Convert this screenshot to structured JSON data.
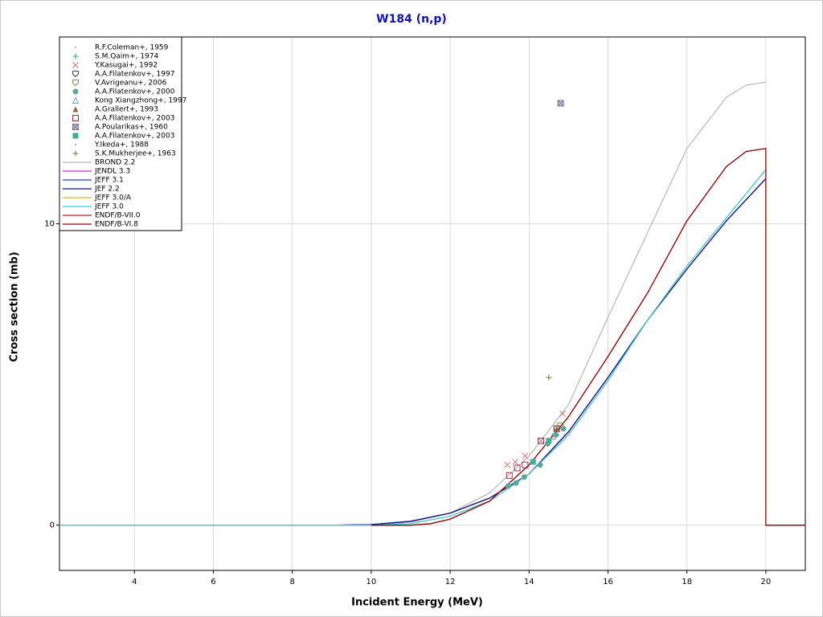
{
  "chart_data": {
    "type": "scatter",
    "title": "W184 (n,p)",
    "x_label": "Incident Energy (MeV)",
    "y_label": "Cross section (mb)",
    "xlim": [
      2.1,
      21
    ],
    "ylim": [
      -1.5,
      16.2
    ],
    "xticks": [
      4,
      6,
      8,
      10,
      12,
      14,
      16,
      18,
      20
    ],
    "yticks": [
      0,
      10
    ],
    "grid": true,
    "legend": "upper left",
    "series": [
      {
        "name": "R.F.Coleman+, 1959",
        "color": "#8fb0c8",
        "marker": "dot",
        "x": [
          14.5
        ],
        "values": [
          2.8
        ]
      },
      {
        "name": "S.M.Qaim+, 1974",
        "color": "#3a9a8a",
        "marker": "plus",
        "x": [
          14.7
        ],
        "values": [
          3.0
        ]
      },
      {
        "name": "Y.Kasugai+, 1992",
        "color": "#d07070",
        "marker": "cross",
        "x": [
          13.45,
          13.65,
          13.9,
          14.3,
          14.85
        ],
        "values": [
          2.0,
          2.1,
          2.3,
          2.8,
          3.7
        ]
      },
      {
        "name": "A.A.Filatenkov+, 1997",
        "color": "#404060",
        "marker": "shield",
        "x": [
          14.7
        ],
        "values": [
          3.2
        ]
      },
      {
        "name": "V.Avrigeanu+, 2006",
        "color": "#6a9a50",
        "marker": "shield",
        "x": [
          14.8
        ],
        "values": [
          3.3
        ]
      },
      {
        "name": "A.A.Filatenkov+, 2000",
        "color": "#5aaa98",
        "marker": "circle",
        "x": [
          13.47,
          13.67,
          13.88,
          14.28,
          14.47,
          14.68,
          14.87
        ],
        "values": [
          1.3,
          1.4,
          1.6,
          2.0,
          2.7,
          3.0,
          3.2
        ]
      },
      {
        "name": "Kong Xiangzhong+, 1997",
        "color": "#80a0b0",
        "marker": "triangle-open",
        "x": [
          14.6
        ],
        "values": [
          2.95
        ]
      },
      {
        "name": "A.Grallert+, 1993",
        "color": "#8a6a40",
        "marker": "triangle",
        "x": [
          14.7
        ],
        "values": [
          3.2
        ]
      },
      {
        "name": "A.A.Filatenkov+, 2003",
        "color": "#a03050",
        "marker": "square-open",
        "x": [
          13.5,
          13.7,
          13.9,
          14.3,
          14.7
        ],
        "values": [
          1.65,
          1.9,
          2.0,
          2.8,
          3.2
        ]
      },
      {
        "name": "A.Poularikas+, 1960",
        "color": "#707090",
        "marker": "square-x",
        "x": [
          14.8
        ],
        "values": [
          14.0
        ]
      },
      {
        "name": "A.A.Filatenkov+, 2003",
        "color": "#40b090",
        "marker": "square",
        "x": [
          14.1,
          14.5
        ],
        "values": [
          2.1,
          2.8
        ]
      },
      {
        "name": "Y.Ikeda+, 1988",
        "color": "#70a0c0",
        "marker": "dot",
        "x": [
          14.9
        ],
        "values": [
          3.0
        ]
      },
      {
        "name": "S.K.Mukherjee+, 1963",
        "color": "#807020",
        "marker": "plus",
        "x": [
          14.5
        ],
        "values": [
          4.9
        ]
      },
      {
        "name": "BROND 2.2",
        "color": "#b8b8b8",
        "marker": "line",
        "x": [
          3,
          10,
          11,
          12,
          13,
          14,
          15,
          16,
          17,
          18,
          19,
          19.5,
          20
        ],
        "values": [
          0,
          0,
          0.1,
          0.4,
          1.07,
          2.3,
          4.0,
          6.9,
          9.7,
          12.5,
          14.2,
          14.6,
          14.7
        ]
      },
      {
        "name": "JENDL 3.3",
        "color": "#e020e0",
        "marker": "line",
        "x": [
          3,
          9,
          10,
          11,
          12,
          13,
          14,
          15,
          16,
          17,
          18,
          19,
          20
        ],
        "values": [
          0,
          0,
          0.02,
          0.13,
          0.4,
          0.9,
          1.7,
          3.1,
          4.9,
          6.8,
          8.5,
          10.1,
          11.5
        ]
      },
      {
        "name": "JEFF 3.1",
        "color": "#2040e0",
        "marker": "line",
        "x": [
          3,
          9,
          10,
          11,
          12,
          13,
          14,
          15,
          16,
          17,
          18,
          19,
          20
        ],
        "values": [
          0,
          0,
          0.02,
          0.13,
          0.4,
          0.9,
          1.7,
          3.1,
          4.9,
          6.8,
          8.5,
          10.1,
          11.5
        ]
      },
      {
        "name": "JEF 2.2",
        "color": "#101080",
        "marker": "line",
        "x": [
          3,
          9,
          10,
          11,
          12,
          13,
          14,
          15,
          16,
          17,
          18,
          19,
          20
        ],
        "values": [
          0,
          0,
          0.02,
          0.13,
          0.4,
          0.9,
          1.7,
          3.1,
          4.9,
          6.8,
          8.5,
          10.1,
          11.5
        ]
      },
      {
        "name": "JEFF 3.0/A",
        "color": "#f0b020",
        "marker": "line",
        "x": [
          2.1,
          10,
          11,
          12,
          13,
          14,
          15,
          16,
          17,
          18,
          19,
          20
        ],
        "values": [
          0,
          0,
          0.05,
          0.3,
          0.8,
          1.7,
          3.0,
          4.8,
          6.8,
          8.6,
          10.2,
          11.8
        ]
      },
      {
        "name": "JEFF 3.0",
        "color": "#30d0e0",
        "marker": "line",
        "x": [
          2.1,
          10,
          11,
          12,
          13,
          14,
          15,
          16,
          17,
          18,
          19,
          20
        ],
        "values": [
          0,
          0,
          0.05,
          0.3,
          0.8,
          1.7,
          3.0,
          4.8,
          6.8,
          8.6,
          10.2,
          11.8
        ]
      },
      {
        "name": "ENDF/B-VII.0",
        "color": "#e01010",
        "marker": "line",
        "x": [
          10,
          11,
          11.5,
          12,
          13,
          14,
          15,
          16,
          17,
          18,
          19,
          19.5,
          20,
          20,
          21
        ],
        "values": [
          0,
          0,
          0.05,
          0.2,
          0.8,
          2.0,
          3.6,
          5.6,
          7.7,
          10.1,
          11.9,
          12.4,
          12.5,
          0,
          0
        ]
      },
      {
        "name": "ENDF/B-VI.8",
        "color": "#900000",
        "marker": "line",
        "x": [
          10,
          11,
          11.5,
          12,
          13,
          14,
          15,
          16,
          17,
          18,
          19,
          19.5,
          20,
          20,
          21
        ],
        "values": [
          0,
          0,
          0.05,
          0.2,
          0.8,
          2.0,
          3.6,
          5.6,
          7.7,
          10.1,
          11.9,
          12.4,
          12.5,
          0,
          0
        ]
      }
    ]
  }
}
